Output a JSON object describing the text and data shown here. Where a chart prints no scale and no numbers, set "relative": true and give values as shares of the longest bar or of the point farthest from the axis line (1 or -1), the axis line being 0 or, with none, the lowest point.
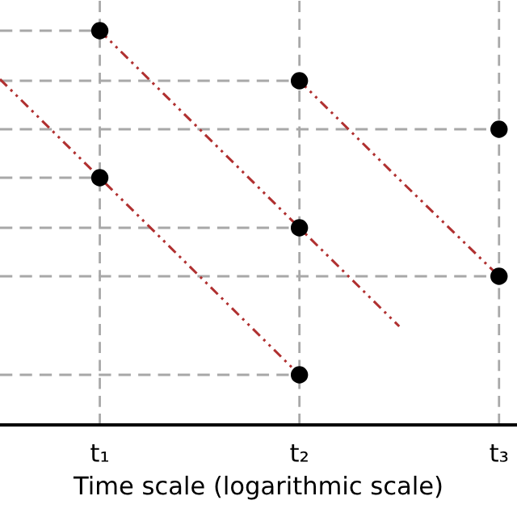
{
  "chart_data": {
    "type": "scatter",
    "relative": true,
    "xlabel": "Time scale (logarithmic scale)",
    "categories": [
      null,
      "t₁",
      null,
      "t₂",
      null,
      "t₃"
    ],
    "grid": "x",
    "marker": "none",
    "series": [
      {
        "type": "line",
        "color": "#a8a8a8",
        "line_style": "dashed",
        "values": [
          1,
          1,
          null,
          null,
          null,
          null
        ]
      },
      {
        "type": "line",
        "color": "#a8a8a8",
        "line_style": "dashed",
        "values": [
          0.627,
          0.627,
          null,
          null,
          null,
          null
        ]
      },
      {
        "type": "line",
        "color": "#a8a8a8",
        "line_style": "dashed",
        "values": [
          0.873,
          0.873,
          0.873,
          0.873,
          null,
          null
        ]
      },
      {
        "type": "line",
        "color": "#a8a8a8",
        "line_style": "dashed",
        "values": [
          0.5,
          0.5,
          0.5,
          0.5,
          null,
          null
        ]
      },
      {
        "type": "line",
        "color": "#a8a8a8",
        "line_style": "dashed",
        "values": [
          0.127,
          0.127,
          0.127,
          0.127,
          null,
          null
        ]
      },
      {
        "type": "line",
        "color": "#a8a8a8",
        "line_style": "dashed",
        "values": [
          0.75,
          0.75,
          0.75,
          0.75,
          0.75,
          0.75
        ]
      },
      {
        "type": "line",
        "color": "#a8a8a8",
        "line_style": "dashed",
        "values": [
          0.377,
          0.377,
          0.377,
          0.377,
          0.377,
          0.377
        ]
      },
      {
        "type": "line",
        "color": "#b03030",
        "line_style": "dotted",
        "values": [
          0.877,
          0.627,
          0.377,
          0.127,
          null,
          null
        ]
      },
      {
        "type": "line",
        "color": "#b03030",
        "line_style": "dotted",
        "values": [
          null,
          1,
          0.75,
          0.5,
          0.25,
          null
        ]
      },
      {
        "type": "line",
        "color": "#b03030",
        "line_style": "dotted",
        "values": [
          null,
          null,
          null,
          0.873,
          0.623,
          0.377
        ]
      },
      {
        "color": "#000000",
        "marker": "circle",
        "values": [
          null,
          1,
          null,
          0.873,
          null,
          0.75
        ]
      },
      {
        "color": "#000000",
        "marker": "circle",
        "values": [
          null,
          0.627,
          null,
          0.5,
          null,
          0.377
        ]
      },
      {
        "color": "#000000",
        "marker": "circle",
        "values": [
          null,
          null,
          null,
          0.127,
          null,
          null
        ]
      }
    ]
  }
}
